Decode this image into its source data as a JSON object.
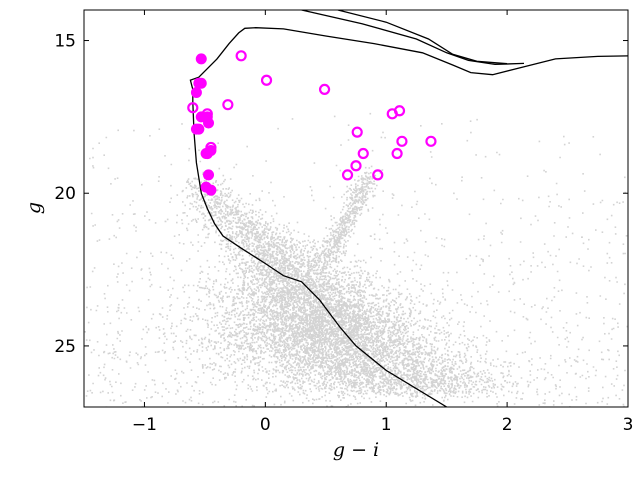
{
  "chart_data": {
    "type": "scatter",
    "xlabel": "g − i",
    "ylabel": "g",
    "xlim": [
      -1.5,
      3
    ],
    "ylim": [
      27,
      14
    ],
    "y_inverted": true,
    "grid": false,
    "xticks": [
      {
        "value": -1,
        "label": "−1"
      },
      {
        "value": 0,
        "label": "0"
      },
      {
        "value": 1,
        "label": "1"
      },
      {
        "value": 2,
        "label": "2"
      },
      {
        "value": 3,
        "label": "3"
      }
    ],
    "yticks": [
      {
        "value": 15,
        "label": "15"
      },
      {
        "value": 20,
        "label": "20"
      },
      {
        "value": 25,
        "label": "25"
      }
    ],
    "colors": {
      "field_stars": "#d3d3d3",
      "members": "#ff00ff",
      "isochrone": "#000000"
    },
    "series": [
      {
        "style": "filled-circle",
        "color": "#ff00ff",
        "points": [
          [
            -0.53,
            15.6
          ],
          [
            -0.53,
            16.4
          ],
          [
            -0.55,
            16.4
          ],
          [
            -0.57,
            16.7
          ],
          [
            -0.53,
            17.5
          ],
          [
            -0.48,
            17.5
          ],
          [
            -0.47,
            17.7
          ],
          [
            -0.55,
            17.9
          ],
          [
            -0.57,
            17.9
          ],
          [
            -0.45,
            18.6
          ],
          [
            -0.49,
            18.7
          ],
          [
            -0.47,
            19.4
          ],
          [
            -0.49,
            19.8
          ],
          [
            -0.45,
            19.9
          ]
        ]
      },
      {
        "style": "open-circle",
        "color": "#ff00ff",
        "points": [
          [
            -0.2,
            15.5
          ],
          [
            0.01,
            16.3
          ],
          [
            0.49,
            16.6
          ],
          [
            -0.6,
            17.2
          ],
          [
            -0.31,
            17.1
          ],
          [
            1.11,
            17.3
          ],
          [
            1.05,
            17.4
          ],
          [
            -0.48,
            17.4
          ],
          [
            0.76,
            18.0
          ],
          [
            1.13,
            18.3
          ],
          [
            1.37,
            18.3
          ],
          [
            0.81,
            18.7
          ],
          [
            1.09,
            18.7
          ],
          [
            0.75,
            19.1
          ],
          [
            0.68,
            19.4
          ],
          [
            0.93,
            19.4
          ],
          [
            -0.48,
            18.7
          ],
          [
            -0.45,
            18.5
          ]
        ]
      },
      {
        "style": "line",
        "color": "#000000",
        "label": "isochrone",
        "points": [
          [
            1.5,
            27.0
          ],
          [
            1.0,
            25.8
          ],
          [
            0.75,
            25.0
          ],
          [
            0.62,
            24.4
          ],
          [
            0.45,
            23.5
          ],
          [
            0.3,
            22.9
          ],
          [
            0.15,
            22.7
          ],
          [
            0.0,
            22.3
          ],
          [
            -0.2,
            21.8
          ],
          [
            -0.35,
            21.4
          ],
          [
            -0.42,
            21.0
          ],
          [
            -0.48,
            20.5
          ],
          [
            -0.53,
            20.0
          ],
          [
            -0.57,
            19.0
          ],
          [
            -0.59,
            18.0
          ],
          [
            -0.6,
            17.0
          ],
          [
            -0.6,
            16.6
          ],
          [
            -0.62,
            16.3
          ],
          [
            -0.55,
            16.2
          ],
          [
            -0.4,
            15.6
          ],
          [
            -0.3,
            15.1
          ],
          [
            -0.22,
            14.75
          ],
          [
            -0.17,
            14.6
          ],
          [
            -0.08,
            14.58
          ],
          [
            0.15,
            14.62
          ],
          [
            0.5,
            14.85
          ],
          [
            0.9,
            15.1
          ],
          [
            1.3,
            15.4
          ],
          [
            1.55,
            15.8
          ],
          [
            1.7,
            16.05
          ],
          [
            1.88,
            16.12
          ],
          [
            2.1,
            15.9
          ],
          [
            2.4,
            15.6
          ],
          [
            2.75,
            15.52
          ],
          [
            3.05,
            15.5
          ]
        ]
      },
      {
        "style": "line",
        "color": "#000000",
        "label": "isochrone-branch-1",
        "points": [
          [
            0.3,
            14.0
          ],
          [
            0.8,
            14.45
          ],
          [
            1.25,
            14.95
          ],
          [
            1.5,
            15.4
          ],
          [
            1.68,
            15.65
          ],
          [
            1.9,
            15.78
          ],
          [
            2.14,
            15.75
          ]
        ]
      },
      {
        "style": "line",
        "color": "#000000",
        "label": "isochrone-branch-2",
        "points": [
          [
            0.6,
            14.0
          ],
          [
            1.0,
            14.4
          ],
          [
            1.35,
            14.95
          ],
          [
            1.55,
            15.45
          ],
          [
            1.75,
            15.68
          ],
          [
            2.0,
            15.76
          ]
        ]
      }
    ]
  }
}
